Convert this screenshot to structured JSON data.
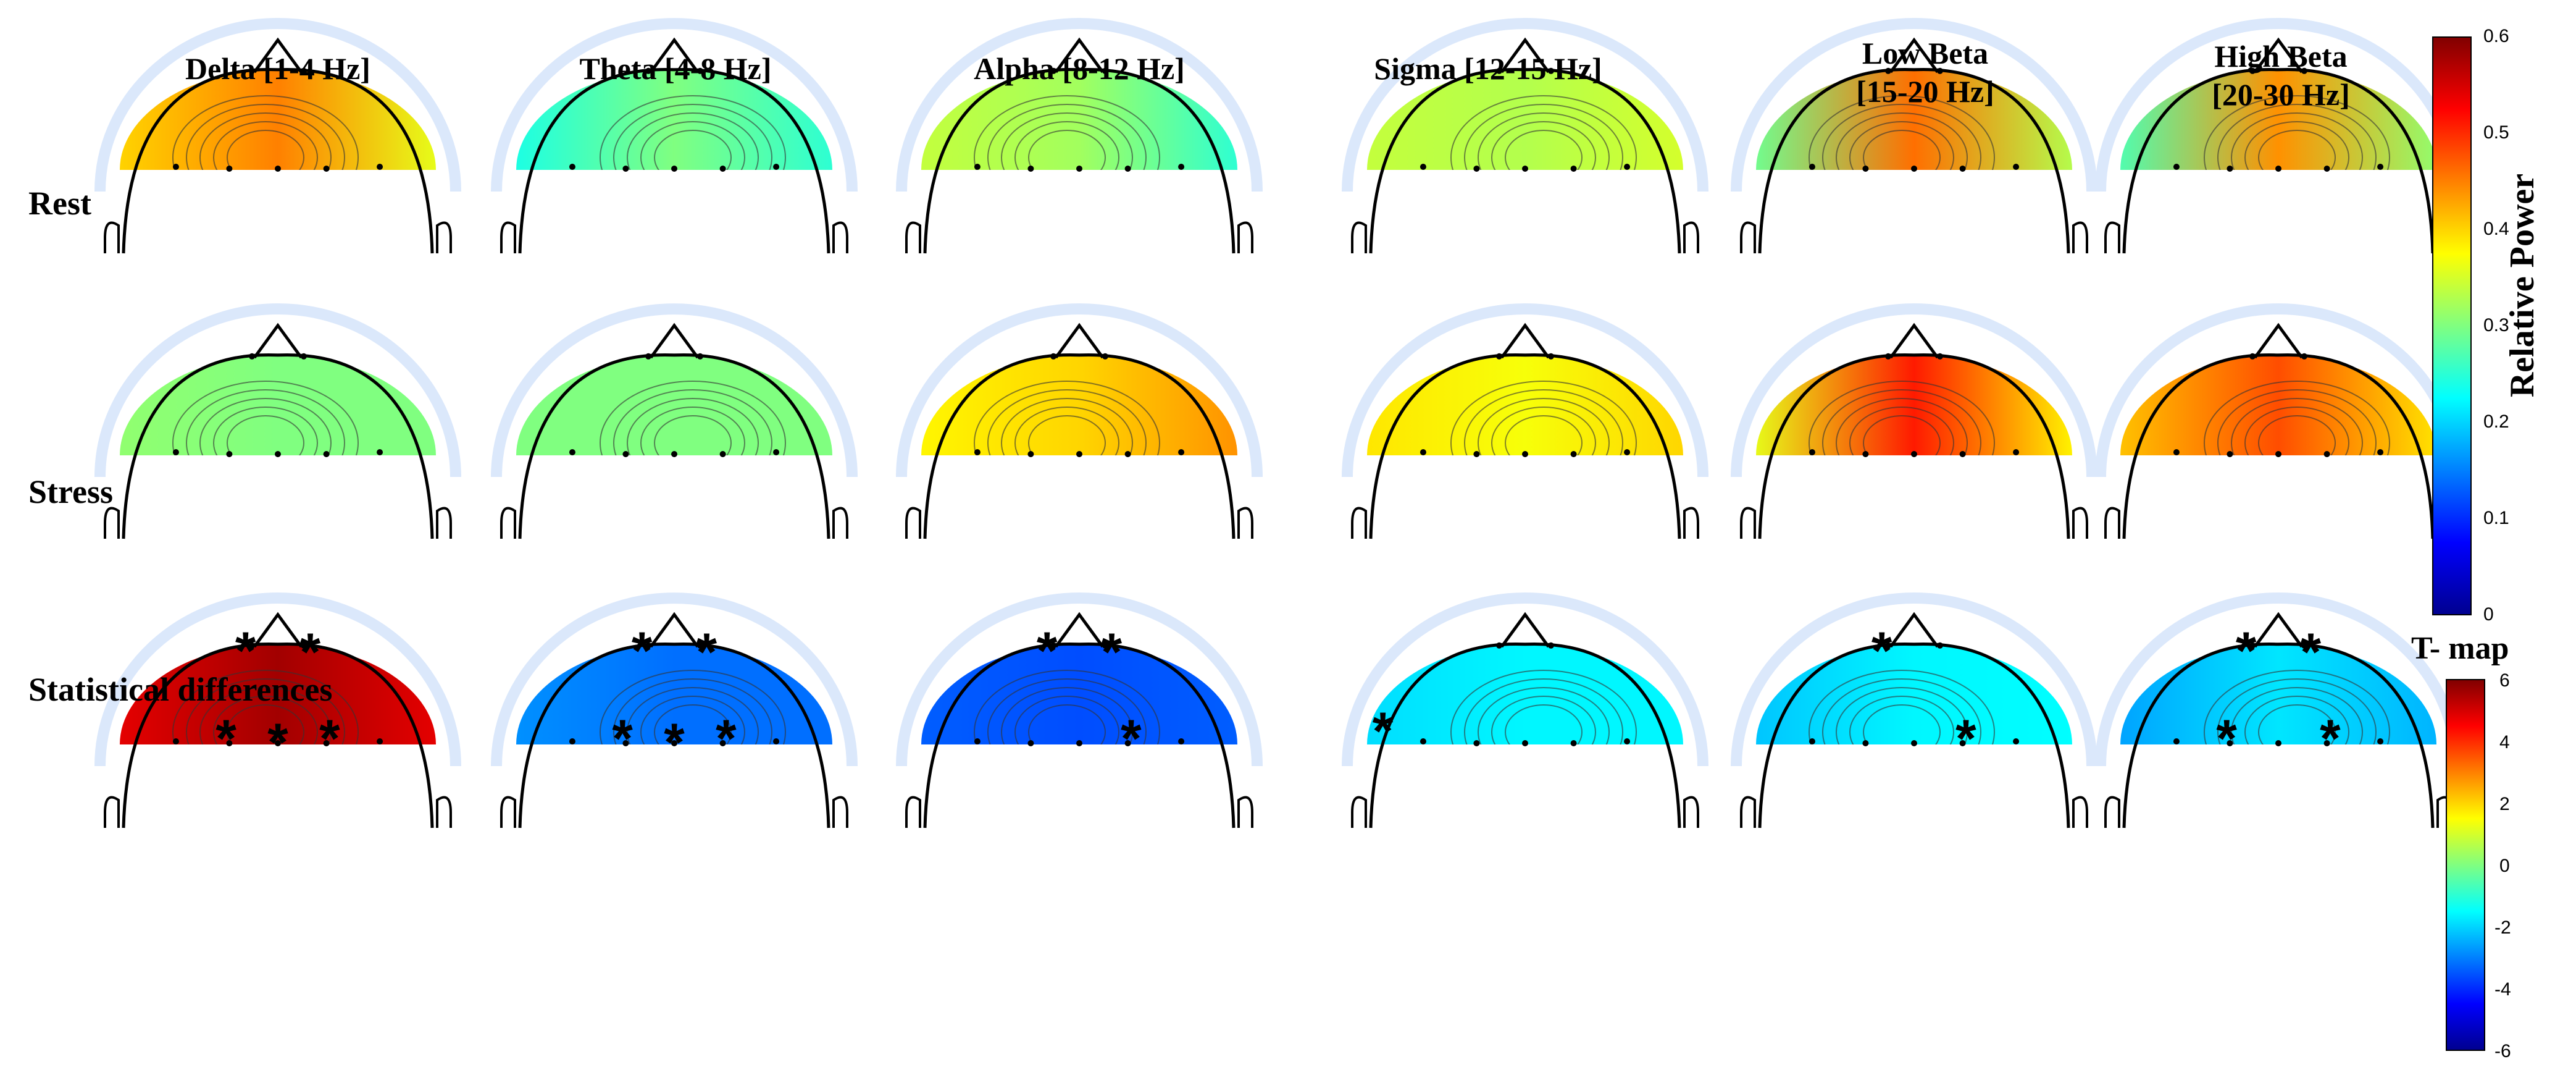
{
  "bands": [
    {
      "title": "Delta [1-4 Hz]"
    },
    {
      "title": "Theta [4-8 Hz]"
    },
    {
      "title": "Alpha [8-12 Hz]"
    },
    {
      "title": "Sigma [12-15 Hz]"
    },
    {
      "title": "Low Beta\n[15-20 Hz]"
    },
    {
      "title": "High Beta\n [20-30 Hz]"
    }
  ],
  "rows": [
    {
      "label": "Rest"
    },
    {
      "label": "Stress"
    },
    {
      "label": "Statistical differences"
    }
  ],
  "power_colorbar": {
    "label": "Relative Power",
    "ticks": [
      "0.6",
      "0.5",
      "0.4",
      "0.3",
      "0.2",
      "0.1",
      "0"
    ],
    "range": [
      0,
      0.6
    ]
  },
  "tmap_colorbar": {
    "title": "T- map",
    "ticks": [
      "6",
      "4",
      "2",
      "0",
      "-2",
      "-4",
      "-6"
    ],
    "range": [
      -6,
      6
    ]
  },
  "colormap": [
    "#00008f",
    "#0000ff",
    "#0080ff",
    "#00ffff",
    "#80ff80",
    "#ffff00",
    "#ff8000",
    "#ff0000",
    "#800000"
  ],
  "maps": {
    "rest": [
      [
        0.4,
        0.45,
        0.36
      ],
      [
        0.24,
        0.3,
        0.25
      ],
      [
        0.34,
        0.32,
        0.25
      ],
      [
        0.34,
        0.33,
        0.35
      ],
      [
        0.29,
        0.46,
        0.33
      ],
      [
        0.27,
        0.44,
        0.31
      ]
    ],
    "stress": [
      [
        0.31,
        0.3,
        0.3
      ],
      [
        0.3,
        0.3,
        0.3
      ],
      [
        0.38,
        0.4,
        0.44
      ],
      [
        0.39,
        0.37,
        0.4
      ],
      [
        0.36,
        0.51,
        0.38
      ],
      [
        0.41,
        0.48,
        0.39
      ]
    ],
    "tmap": [
      [
        4.8,
        5.6,
        4.8
      ],
      [
        -2.8,
        -3.2,
        -3.2
      ],
      [
        -3.4,
        -3.6,
        -3.4
      ],
      [
        -1.9,
        -1.6,
        -1.6
      ],
      [
        -2.2,
        -1.6,
        -1.5
      ],
      [
        -2.6,
        -1.8,
        -2.4
      ]
    ]
  },
  "significant_markers": [
    [
      [
        "front",
        "left"
      ],
      [
        "front",
        "right"
      ],
      [
        "back",
        "left"
      ],
      [
        "back",
        "center"
      ],
      [
        "back",
        "right"
      ]
    ],
    [
      [
        "front",
        "left"
      ],
      [
        "front",
        "right"
      ],
      [
        "back",
        "left"
      ],
      [
        "back",
        "center"
      ],
      [
        "back",
        "right"
      ]
    ],
    [
      [
        "front",
        "left"
      ],
      [
        "front",
        "right"
      ],
      [
        "back",
        "right"
      ]
    ],
    [
      [
        "side",
        "left"
      ]
    ],
    [
      [
        "front",
        "left"
      ],
      [
        "back",
        "right"
      ]
    ],
    [
      [
        "front",
        "left"
      ],
      [
        "front",
        "right"
      ],
      [
        "back",
        "left"
      ],
      [
        "back",
        "right"
      ]
    ]
  ]
}
